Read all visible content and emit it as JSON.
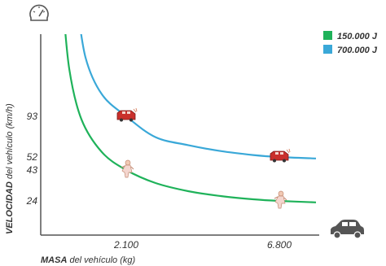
{
  "chart_data": {
    "type": "line",
    "x_ticks": [
      {
        "value": 2100,
        "label": "2.100"
      },
      {
        "value": 6800,
        "label": "6.800"
      }
    ],
    "y_ticks": [
      {
        "value": 93,
        "label": "93"
      },
      {
        "value": 52,
        "label": "52"
      },
      {
        "value": 43,
        "label": "43"
      },
      {
        "value": 24,
        "label": "24"
      }
    ],
    "xlabel_bold": "MASA",
    "xlabel_rest": " del vehículo (kg)",
    "ylabel_bold": "VELOCIDAD",
    "ylabel_rest": " del vehículo (km/h)",
    "series": [
      {
        "name": "150.000 J",
        "color": "#1fb25a",
        "points": [
          [
            540,
            330
          ],
          [
            700,
            190
          ],
          [
            1000,
            90
          ],
          [
            1500,
            57
          ],
          [
            2100,
            43
          ],
          [
            3000,
            35
          ],
          [
            4000,
            30
          ],
          [
            5000,
            27
          ],
          [
            6000,
            25
          ],
          [
            6800,
            24
          ],
          [
            7300,
            23
          ]
        ]
      },
      {
        "name": "700.000 J",
        "color": "#3aa8d8",
        "points": [
          [
            880,
            330
          ],
          [
            1100,
            213
          ],
          [
            1500,
            138
          ],
          [
            2100,
            93
          ],
          [
            3000,
            72
          ],
          [
            4000,
            64
          ],
          [
            5000,
            58
          ],
          [
            6000,
            54
          ],
          [
            6800,
            52
          ],
          [
            7300,
            51
          ]
        ]
      }
    ],
    "markers": [
      {
        "x": 2100,
        "y": 93,
        "kind": "crash-car-icon"
      },
      {
        "x": 6800,
        "y": 52,
        "kind": "crash-car-icon"
      },
      {
        "x": 2100,
        "y": 43,
        "kind": "person-icon"
      },
      {
        "x": 6800,
        "y": 24,
        "kind": "person-icon"
      }
    ],
    "xlim": [
      0,
      7300
    ],
    "ylim": [
      0,
      330
    ]
  }
}
